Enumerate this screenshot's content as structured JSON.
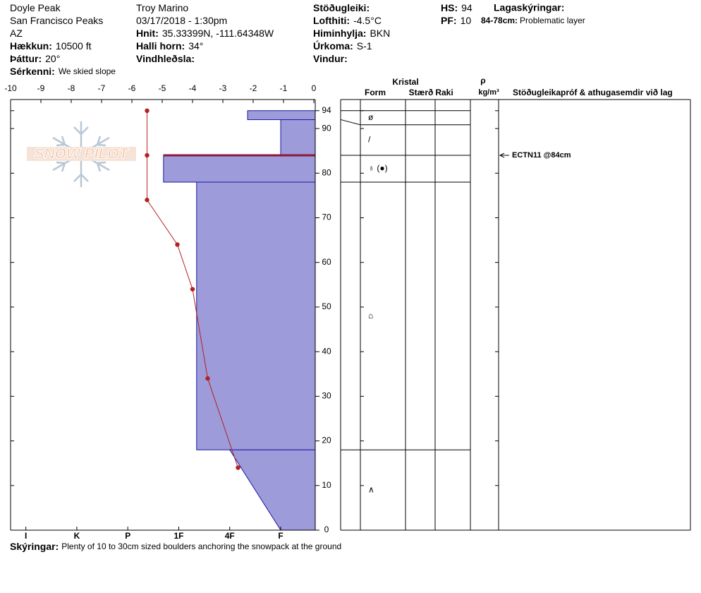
{
  "header": {
    "columns": [
      [
        {
          "value": "Doyle Peak"
        },
        {
          "value": "San Francisco Peaks"
        },
        {
          "value": "AZ"
        },
        {
          "label": "Hækkun:",
          "value": "10500 ft"
        },
        {
          "label": "Þáttur:",
          "value": "20°"
        },
        {
          "label": "Sérkenni:",
          "value": "We skied slope"
        }
      ],
      [
        {
          "value": "Troy Marino"
        },
        {
          "value": "03/17/2018 - 1:30pm"
        },
        {
          "label": "Hnit:",
          "value": "35.33399N, -111.64348W"
        },
        {
          "label": "Halli horn:",
          "value": "34°"
        },
        {
          "label": "Vindhleðsla:"
        }
      ],
      [
        {
          "label": "Stöðugleiki:"
        },
        {
          "label": "Lofthiti:",
          "value": "-4.5°C"
        },
        {
          "label": "Himinhylja:",
          "value": "BKN"
        },
        {
          "label": "Úrkoma:",
          "value": "S-1"
        },
        {
          "label": "Vindur:"
        }
      ],
      [
        {
          "label": "HS:",
          "value": "94"
        },
        {
          "label": "PF:",
          "value": "10"
        }
      ]
    ],
    "legend_title": "Lagaskýringar:",
    "legend_items": [
      {
        "label": "84-78cm:",
        "value": "Problematic layer"
      }
    ]
  },
  "logo": "SNOW PILOT",
  "chart_data": {
    "type": "snow-profile",
    "xlim": [
      -10,
      0
    ],
    "xticks": [
      -10,
      -9,
      -8,
      -7,
      -6,
      -5,
      -4,
      -3,
      -2,
      -1,
      0
    ],
    "ylim": [
      0,
      96.5
    ],
    "yticks": [
      0,
      10,
      20,
      30,
      40,
      50,
      60,
      70,
      80,
      90,
      94
    ],
    "hlim": [
      0.35,
      6.3
    ],
    "hticks": [
      {
        "value": 6,
        "label": "I"
      },
      {
        "value": 5,
        "label": "K"
      },
      {
        "value": 4,
        "label": "P"
      },
      {
        "value": 3,
        "label": "1F"
      },
      {
        "value": 2,
        "label": "4F"
      },
      {
        "value": 1,
        "label": "F"
      }
    ],
    "temperature": {
      "color": "#b22222",
      "heights": [
        94,
        84,
        74,
        64,
        54,
        34,
        14
      ],
      "values": [
        -5.5,
        -5.5,
        -5.5,
        -4.5,
        -4,
        -3.5,
        -2.5
      ]
    },
    "hardness_color": "#9d9bd9",
    "layers": [
      {
        "top": 94,
        "bottom": 92,
        "hardness_top": 1.65,
        "hardness_bottom": 1.65,
        "form": "ø"
      },
      {
        "top": 92,
        "bottom": 84,
        "hardness_top": 1,
        "hardness_bottom": 1,
        "form": "/"
      },
      {
        "top": 84,
        "bottom": 78,
        "hardness_top": 3.3,
        "hardness_bottom": 3.3,
        "form": "♁ (●)"
      },
      {
        "top": 78,
        "bottom": 18,
        "hardness_top": 2.65,
        "hardness_bottom": 2.65,
        "form": "⌂"
      },
      {
        "top": 18,
        "bottom": 0,
        "hardness_top": 2,
        "hardness_bottom": 1,
        "form": "∧"
      }
    ],
    "problem_layer": {
      "height": 84,
      "color": "#8b1a3a"
    }
  },
  "grain_table": {
    "group": "Kristal",
    "columns": [
      "Form",
      "Stærð",
      "Raki"
    ],
    "density_symbol": "ρ",
    "density_unit": "kg/m³",
    "comments": "Stöðugleikapróf & athugasemdir við lag",
    "tests": [
      {
        "height": 84,
        "text": "ECTN11 @84cm"
      }
    ]
  },
  "footer": {
    "label": "Skýringar:",
    "value": "Plenty of 10 to 30cm sized boulders anchoring the snowpack at the ground"
  }
}
